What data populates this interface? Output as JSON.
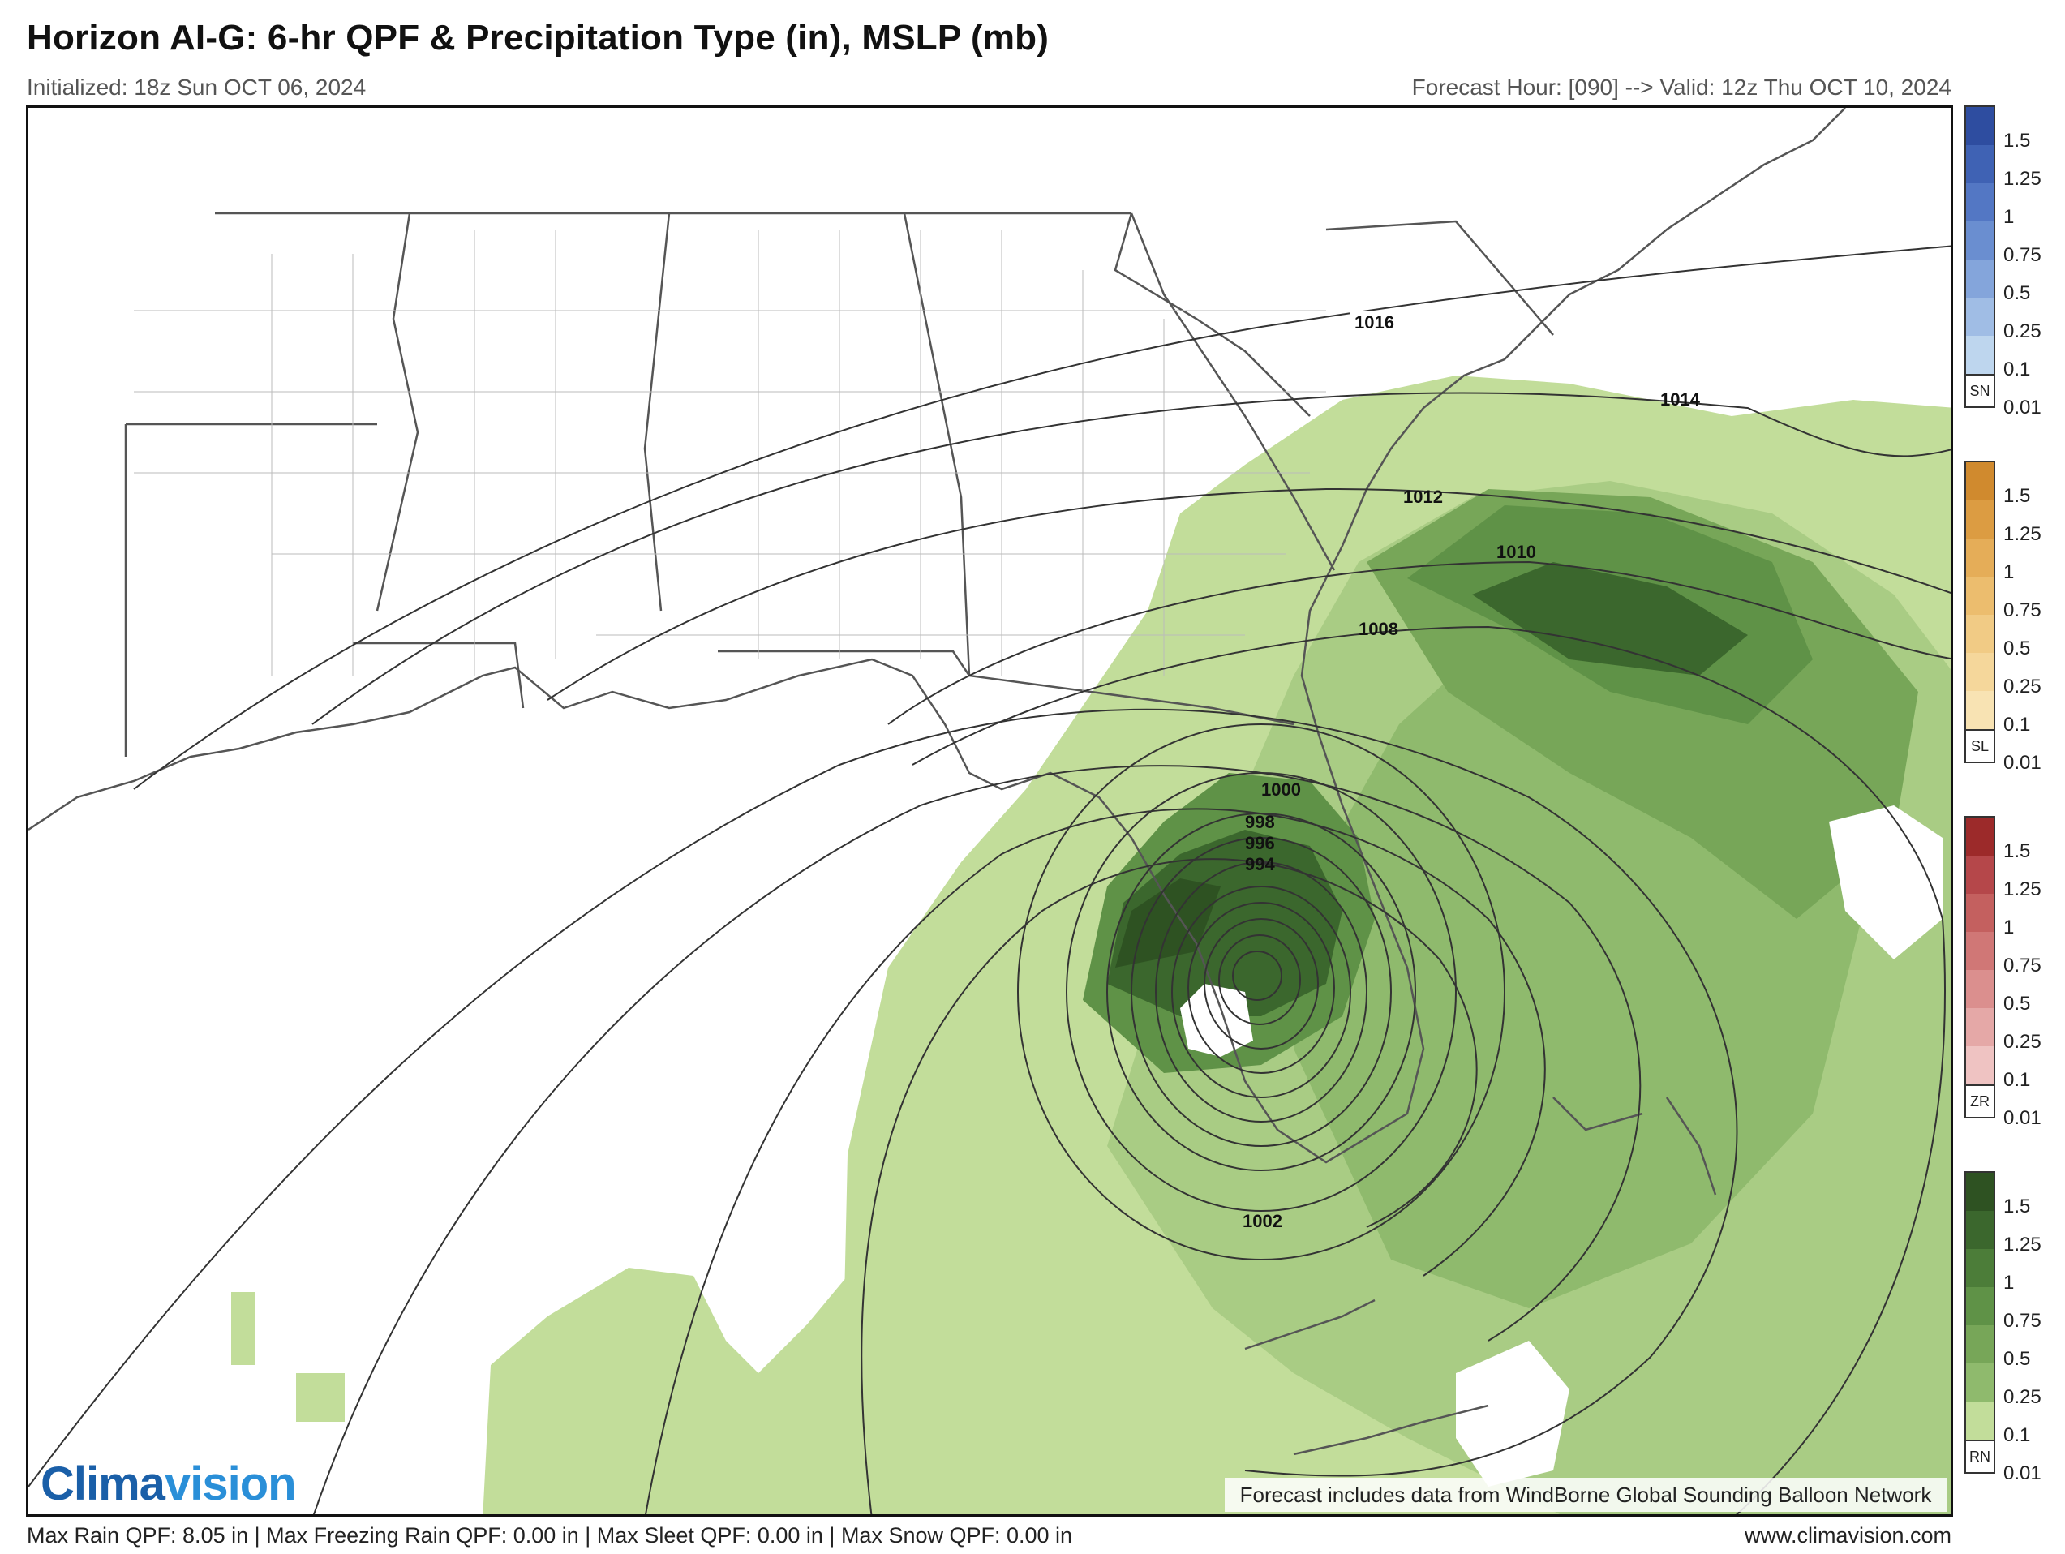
{
  "header": {
    "title": "Horizon AI-G: 6-hr QPF & Precipitation Type (in), MSLP (mb)",
    "initialized": "Initialized: 18z Sun OCT 06, 2024",
    "valid": "Forecast Hour: [090] --> Valid: 12z Thu OCT 10, 2024"
  },
  "map": {
    "isobars": [
      {
        "label": "1016",
        "mb": 1016
      },
      {
        "label": "1014",
        "mb": 1014
      },
      {
        "label": "1012",
        "mb": 1012
      },
      {
        "label": "1010",
        "mb": 1010
      },
      {
        "label": "1008",
        "mb": 1008
      },
      {
        "label": "1002",
        "mb": 1002
      },
      {
        "label": "1000",
        "mb": 1000
      },
      {
        "label": "998",
        "mb": 998
      },
      {
        "label": "996",
        "mb": 996
      },
      {
        "label": "994",
        "mb": 994
      }
    ],
    "precip_colors": [
      "#c2dd9a",
      "#a9cc84",
      "#8fba6d",
      "#77a658",
      "#5f9247",
      "#4c7d39",
      "#3b672d",
      "#2e5222"
    ]
  },
  "legend": {
    "ticks": [
      "1.5",
      "1.25",
      "1",
      "0.75",
      "0.5",
      "0.25",
      "0.1",
      "0.01"
    ],
    "bars": [
      {
        "code": "SN",
        "colors": [
          "#2e4da0",
          "#3f62b4",
          "#5377c4",
          "#6a8ed0",
          "#84a5db",
          "#a0bde5",
          "#bed6ee"
        ]
      },
      {
        "code": "SL",
        "colors": [
          "#d08a2e",
          "#dc9c42",
          "#e5ad58",
          "#ecbd6e",
          "#f1cb85",
          "#f5d79b",
          "#f8e3b3"
        ]
      },
      {
        "code": "ZR",
        "colors": [
          "#9c2a2a",
          "#b5474a",
          "#c4605f",
          "#d07776",
          "#db8f8e",
          "#e5a8a7",
          "#efc3c2"
        ]
      },
      {
        "code": "RN",
        "colors": [
          "#2e5222",
          "#3b672d",
          "#4c7d39",
          "#5f9247",
          "#77a658",
          "#8fba6d",
          "#c2dd9a"
        ]
      }
    ]
  },
  "footer": {
    "max_qpf": "Max Rain QPF: 8.05 in | Max Freezing Rain QPF: 0.00 in | Max Sleet QPF: 0.00 in | Max Snow QPF: 0.00 in",
    "website": "www.climavision.com"
  },
  "branding": {
    "logo_prefix": "Clima",
    "logo_suffix": "vision",
    "credit": "Forecast includes data from WindBorne Global Sounding Balloon Network"
  }
}
